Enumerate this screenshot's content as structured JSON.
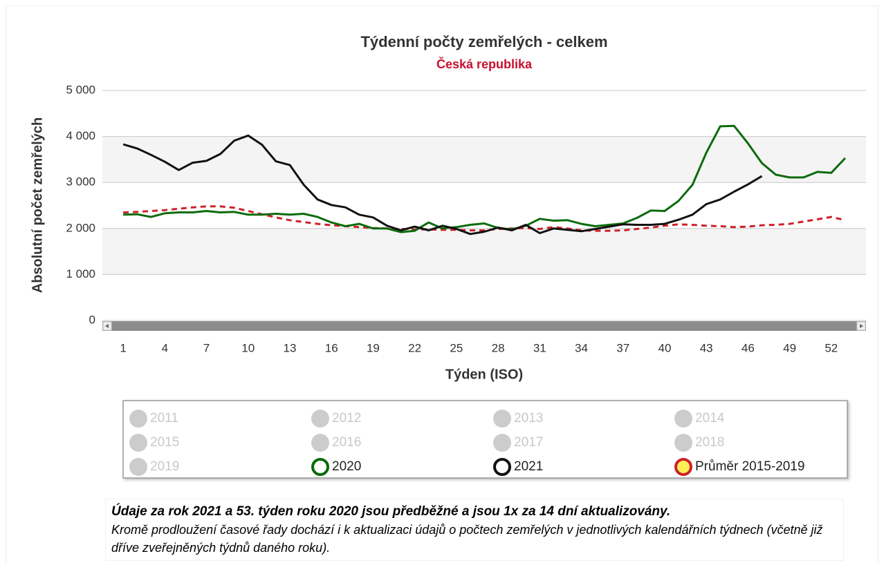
{
  "chart_data": {
    "type": "line",
    "title": "Týdenní počty zemřelých - celkem",
    "subtitle": "Česká republika",
    "x_label": "Týden (ISO)",
    "y_label": "Absolutní počet zemřelých",
    "x": [
      1,
      2,
      3,
      4,
      5,
      6,
      7,
      8,
      9,
      10,
      11,
      12,
      13,
      14,
      15,
      16,
      17,
      18,
      19,
      20,
      21,
      22,
      23,
      24,
      25,
      26,
      27,
      28,
      29,
      30,
      31,
      32,
      33,
      34,
      35,
      36,
      37,
      38,
      39,
      40,
      41,
      42,
      43,
      44,
      45,
      46,
      47,
      48,
      49,
      50,
      51,
      52,
      53
    ],
    "xlim": [
      -0.5,
      54.5
    ],
    "xticks": [
      1,
      4,
      7,
      10,
      13,
      16,
      19,
      22,
      25,
      28,
      31,
      34,
      37,
      40,
      43,
      46,
      49,
      52
    ],
    "ylim": [
      0,
      5000
    ],
    "yticks": [
      0,
      {
        "value": 1000,
        "label": "1 000"
      },
      {
        "value": 2000,
        "label": "2 000"
      },
      {
        "value": 3000,
        "label": "3 000"
      },
      {
        "value": 4000,
        "label": "4 000"
      },
      {
        "value": 5000,
        "label": "5 000"
      }
    ],
    "grid": true,
    "alternate_grid": true,
    "hidden_series": [
      "2011",
      "2012",
      "2013",
      "2014",
      "2015",
      "2016",
      "2017",
      "2018",
      "2019"
    ],
    "series": [
      {
        "name": "2020",
        "color": "#0b6b0b",
        "dashed": false,
        "values": [
          2300,
          2310,
          2250,
          2330,
          2350,
          2350,
          2380,
          2350,
          2360,
          2300,
          2300,
          2320,
          2300,
          2320,
          2250,
          2130,
          2050,
          2100,
          2000,
          2000,
          1920,
          1950,
          2130,
          2000,
          2030,
          2080,
          2110,
          2010,
          1980,
          2060,
          2210,
          2170,
          2180,
          2100,
          2050,
          2080,
          2110,
          2230,
          2390,
          2380,
          2600,
          2950,
          3650,
          4220,
          4230,
          3850,
          3420,
          3170,
          3110,
          3110,
          3230,
          3210,
          3530
        ]
      },
      {
        "name": "2021",
        "color": "#111111",
        "dashed": false,
        "values": [
          3830,
          3740,
          3600,
          3450,
          3270,
          3430,
          3470,
          3620,
          3910,
          4020,
          3820,
          3460,
          3380,
          2950,
          2630,
          2510,
          2460,
          2300,
          2240,
          2060,
          1960,
          2040,
          1960,
          2060,
          1990,
          1880,
          1930,
          2020,
          1960,
          2080,
          1900,
          2000,
          1970,
          1940,
          1990,
          2040,
          2090,
          2080,
          2080,
          2100,
          2190,
          2300,
          2530,
          2630,
          2800,
          2960,
          3140,
          null,
          null,
          null,
          null,
          null,
          null
        ]
      },
      {
        "name": "Průměr 2015-2019",
        "color": "#cc2229",
        "marker_fill": "#ffee55",
        "dashed": true,
        "values": [
          2350,
          2360,
          2380,
          2400,
          2430,
          2460,
          2480,
          2480,
          2450,
          2380,
          2310,
          2240,
          2180,
          2140,
          2100,
          2070,
          2050,
          2030,
          2010,
          2000,
          1990,
          1980,
          1980,
          1970,
          1970,
          1960,
          1960,
          1990,
          2000,
          2010,
          1990,
          2030,
          2000,
          1960,
          1950,
          1950,
          1960,
          1990,
          2020,
          2060,
          2090,
          2080,
          2060,
          2050,
          2030,
          2040,
          2070,
          2080,
          2100,
          2150,
          2200,
          2250,
          2180
        ]
      }
    ]
  },
  "notes": {
    "bold": "Údaje za rok 2021 a 53. týden roku 2020 jsou předběžné a jsou 1x za 14 dní aktualizovány.",
    "text": "Kromě prodloužení časové řady dochází i k aktualizaci údajů o počtech zemřelých v jednotlivých kalendářních týdnech (včetně již dříve zveřejněných týdnů daného roku)."
  }
}
